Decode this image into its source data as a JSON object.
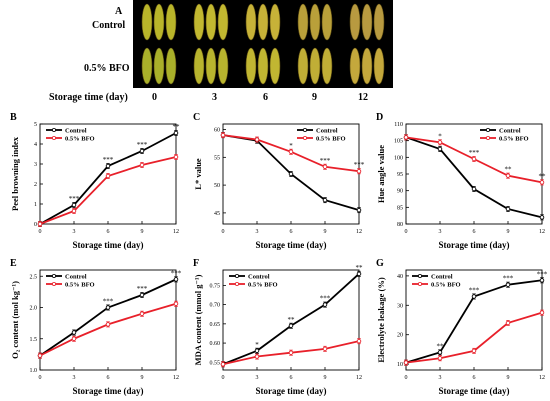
{
  "photo": {
    "letter": "A",
    "rows": [
      "Control",
      "0.5% BFO"
    ],
    "xlabel": "Storage  time  (day)",
    "days": [
      "0",
      "3",
      "6",
      "9",
      "12"
    ],
    "fruit_colors": [
      [
        "#b9b52a",
        "#c2b830",
        "#c7b238",
        "#b9a03a",
        "#b89a40"
      ],
      [
        "#a9b02a",
        "#b8b42e",
        "#c1b632",
        "#c0ae36",
        "#c4a83c"
      ]
    ]
  },
  "colors": {
    "control": "#000000",
    "bfo": "#e8202a"
  },
  "chart_data": [
    {
      "letter": "B",
      "type": "line",
      "xlabel": "Storage  time  (day)",
      "ylabel": "Peel browning index",
      "x": [
        0,
        3,
        6,
        9,
        12
      ],
      "xticks": [
        "0",
        "3",
        "6",
        "9",
        "12"
      ],
      "ylim": [
        0,
        5
      ],
      "yticks": [
        "0",
        "1",
        "2",
        "3",
        "4",
        "5"
      ],
      "legend": "top-left",
      "series": [
        {
          "name": "Control",
          "values": [
            0,
            0.95,
            2.9,
            3.65,
            4.55
          ]
        },
        {
          "name": "0.5% BFO",
          "values": [
            0,
            0.65,
            2.4,
            2.95,
            3.35
          ]
        }
      ],
      "annotations": [
        "",
        "***",
        "***",
        "***",
        "**"
      ]
    },
    {
      "letter": "C",
      "type": "line",
      "xlabel": "Storage  time  (day)",
      "ylabel": "L* value",
      "x": [
        0,
        3,
        6,
        9,
        12
      ],
      "xticks": [
        "0",
        "3",
        "6",
        "9",
        "12"
      ],
      "ylim": [
        43,
        61
      ],
      "yticks": [
        "45",
        "50",
        "55",
        "60"
      ],
      "legend": "top-right",
      "series": [
        {
          "name": "Control",
          "values": [
            59,
            58,
            52,
            47.3,
            45.5
          ]
        },
        {
          "name": "0.5% BFO",
          "values": [
            59,
            58.2,
            56,
            53.3,
            52.5
          ]
        }
      ],
      "annotations": [
        "",
        "",
        "*",
        "***",
        "***"
      ]
    },
    {
      "letter": "D",
      "type": "line",
      "xlabel": "Storage  time  (day)",
      "ylabel": "Hue angle value",
      "x": [
        0,
        3,
        6,
        9,
        12
      ],
      "xticks": [
        "0",
        "3",
        "6",
        "9",
        "12"
      ],
      "ylim": [
        80,
        110
      ],
      "yticks": [
        "80",
        "85",
        "90",
        "95",
        "100",
        "105",
        "110"
      ],
      "legend": "top-right",
      "series": [
        {
          "name": "Control",
          "values": [
            106,
            102.5,
            90.5,
            84.5,
            82
          ]
        },
        {
          "name": "0.5% BFO",
          "values": [
            106,
            104.5,
            99.5,
            94.5,
            92.5
          ]
        }
      ],
      "annotations": [
        "",
        "*",
        "***",
        "**",
        "**"
      ]
    },
    {
      "letter": "E",
      "type": "line",
      "xlabel": "Storage  time  (day)",
      "ylabel": "O₂ content (mol kg⁻¹)",
      "x": [
        0,
        3,
        6,
        9,
        12
      ],
      "xticks": [
        "0",
        "3",
        "6",
        "9",
        "12"
      ],
      "ylim": [
        1.0,
        2.6
      ],
      "yticks": [
        "1.0",
        "1.5",
        "2.0",
        "2.5"
      ],
      "legend": "top-left",
      "series": [
        {
          "name": "Control",
          "values": [
            1.23,
            1.6,
            2.0,
            2.2,
            2.45
          ]
        },
        {
          "name": "0.5% BFO",
          "values": [
            1.23,
            1.5,
            1.73,
            1.9,
            2.06
          ]
        }
      ],
      "annotations": [
        "",
        "",
        "***",
        "***",
        "***"
      ]
    },
    {
      "letter": "F",
      "type": "line",
      "xlabel": "Storage  time  (day)",
      "ylabel": "MDA content (mmol g⁻¹)",
      "x": [
        0,
        3,
        6,
        9,
        12
      ],
      "xticks": [
        "0",
        "3",
        "6",
        "9",
        "12"
      ],
      "ylim": [
        0.53,
        0.79
      ],
      "yticks": [
        "0.55",
        "0.60",
        "0.65",
        "0.70",
        "0.75"
      ],
      "legend": "top-left",
      "series": [
        {
          "name": "Control",
          "values": [
            0.545,
            0.58,
            0.645,
            0.7,
            0.78
          ]
        },
        {
          "name": "0.5% BFO",
          "values": [
            0.545,
            0.565,
            0.575,
            0.585,
            0.605
          ]
        }
      ],
      "annotations": [
        "",
        "*",
        "**",
        "***",
        "**"
      ]
    },
    {
      "letter": "G",
      "type": "line",
      "xlabel": "Storage  time  (day)",
      "ylabel": "Electrolyte leakage (%)",
      "x": [
        0,
        3,
        6,
        9,
        12
      ],
      "xticks": [
        "0",
        "3",
        "6",
        "9",
        "12"
      ],
      "ylim": [
        8,
        42
      ],
      "yticks": [
        "10",
        "20",
        "30",
        "40"
      ],
      "legend": "top-left",
      "series": [
        {
          "name": "Control",
          "values": [
            10.5,
            14,
            33,
            37,
            38.5
          ]
        },
        {
          "name": "0.5% BFO",
          "values": [
            10.5,
            12,
            14.5,
            24,
            27.5
          ]
        }
      ],
      "annotations": [
        "",
        "**",
        "***",
        "***",
        "***"
      ]
    }
  ]
}
